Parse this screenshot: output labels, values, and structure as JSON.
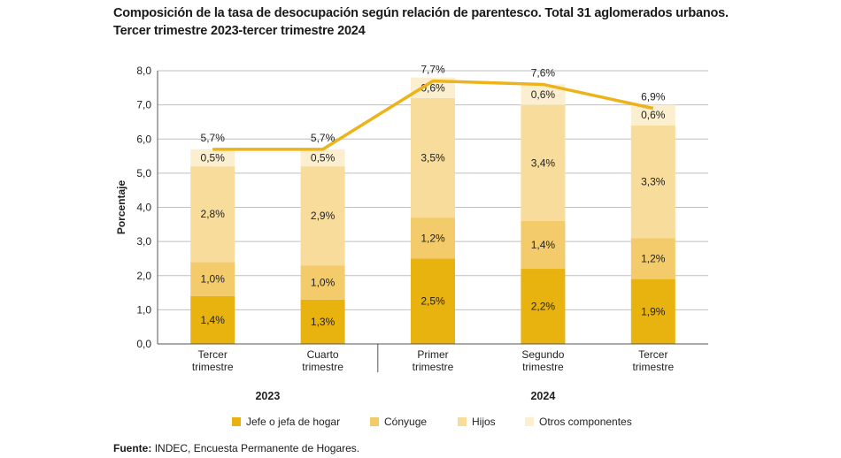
{
  "title_line1": "Composición de la tasa de desocupación según relación de parentesco. Total 31 aglomerados urbanos.",
  "title_line2": "Tercer trimestre 2023-tercer trimestre 2024",
  "source_label": "Fuente:",
  "source_text": "INDEC, Encuesta Permanente de Hogares.",
  "colors": {
    "jefe": "#e8b30f",
    "conyuge": "#f3cb6a",
    "hijos": "#f7dc9c",
    "otros": "#fbefcf",
    "line": "#edb31a",
    "grid": "#bfbfbf"
  },
  "chart_data": {
    "type": "bar",
    "stacked": true,
    "ylabel": "Porcentaje",
    "ylim": [
      0,
      8
    ],
    "yticks": [
      "0,0",
      "1,0",
      "2,0",
      "3,0",
      "4,0",
      "5,0",
      "6,0",
      "7,0",
      "8,0"
    ],
    "categories": [
      [
        "Tercer",
        "trimestre"
      ],
      [
        "Cuarto",
        "trimestre"
      ],
      [
        "Primer",
        "trimestre"
      ],
      [
        "Segundo",
        "trimestre"
      ],
      [
        "Tercer",
        "trimestre"
      ]
    ],
    "year_groups": [
      {
        "label": "2023",
        "span": [
          0,
          1
        ]
      },
      {
        "label": "2024",
        "span": [
          2,
          4
        ]
      }
    ],
    "series": [
      {
        "key": "jefe",
        "name": "Jefe o jefa de hogar",
        "values": [
          1.4,
          1.3,
          2.5,
          2.2,
          1.9
        ],
        "labels": [
          "1,4%",
          "1,3%",
          "2,5%",
          "2,2%",
          "1,9%"
        ]
      },
      {
        "key": "conyuge",
        "name": "Cónyuge",
        "values": [
          1.0,
          1.0,
          1.2,
          1.4,
          1.2
        ],
        "labels": [
          "1,0%",
          "1,0%",
          "1,2%",
          "1,4%",
          "1,2%"
        ]
      },
      {
        "key": "hijos",
        "name": "Hijos",
        "values": [
          2.8,
          2.9,
          3.5,
          3.4,
          3.3
        ],
        "labels": [
          "2,8%",
          "2,9%",
          "3,5%",
          "3,4%",
          "3,3%"
        ]
      },
      {
        "key": "otros",
        "name": "Otros componentes",
        "values": [
          0.5,
          0.5,
          0.6,
          0.6,
          0.6
        ],
        "labels": [
          "0,5%",
          "0,5%",
          "0,6%",
          "0,6%",
          "0,6%"
        ]
      }
    ],
    "total": {
      "values": [
        5.7,
        5.7,
        7.7,
        7.6,
        6.9
      ],
      "labels": [
        "5,7%",
        "5,7%",
        "7,7%",
        "7,6%",
        "6,9%"
      ]
    }
  }
}
